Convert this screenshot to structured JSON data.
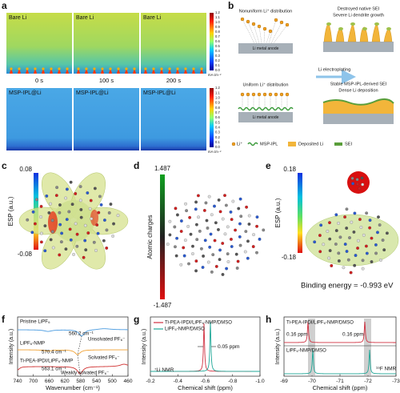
{
  "panel_labels": [
    "a",
    "b",
    "c",
    "d",
    "e",
    "f",
    "g",
    "h"
  ],
  "panel_a": {
    "top_titles": [
      "Bare Li",
      "Bare Li",
      "Bare Li"
    ],
    "times": [
      "0 s",
      "100 s",
      "200 s"
    ],
    "bottom_titles": [
      "MSP-IPL@Li",
      "MSP-IPL@Li",
      "MSP-IPL@Li"
    ],
    "colorbars": [
      {
        "ticks": [
          "1.2",
          "1.1",
          "1.0",
          "0.9",
          "0.8",
          "0.7",
          "0.6",
          "0.5",
          "0.4",
          "0.3",
          "0.2",
          "0.1",
          "0.0"
        ],
        "unit": "mA cm⁻²"
      },
      {
        "ticks": [
          "1.2",
          "1.1",
          "1.0",
          "0.9",
          "0.8",
          "0.7",
          "0.6",
          "0.5",
          "0.4",
          "0.3",
          "0.2",
          "0.1",
          "0.0"
        ],
        "unit": "mA cm⁻²"
      }
    ]
  },
  "panel_b": {
    "nonuniform": "Nonuniform Li⁺ distribution",
    "destroyed": "Destroyed native SEI",
    "dendrite": "Severe Li dendrite growth",
    "anode_top": "Li metal anode",
    "process": "Li electroplating",
    "uniform": "Uniform Li⁺ distribution",
    "stable": "Stable MSP-IPL-derived SEI",
    "dense": "Dense Li deposition",
    "anode_bottom": "Li metal anode",
    "legend": [
      "Li⁺",
      "MSP-IPL",
      "Deposited Li",
      "SEI"
    ]
  },
  "panel_c": {
    "colorbar_max": "0.08",
    "colorbar_min": "-0.08",
    "axis_label": "ESP (a.u.)"
  },
  "panel_d": {
    "colorbar_max": "1.487",
    "colorbar_min": "-1.487",
    "axis_label": "Atomic charges"
  },
  "panel_e": {
    "colorbar_max": "0.18",
    "colorbar_min": "-0.18",
    "axis_label": "ESP (a.u.)",
    "annotation": "Binding energy = -0.993 eV"
  },
  "panel_f": {
    "y_label": "Intensity (a.u.)",
    "x_label": "Wavenumber (cm⁻¹)",
    "x_ticks": [
      "740",
      "700",
      "660",
      "620",
      "580",
      "540",
      "500",
      "460"
    ],
    "traces": [
      {
        "name": "Pristine LiPF₆",
        "peak": "560.2 cm⁻¹",
        "note": "Unsolvated PF₆⁻"
      },
      {
        "name": "LiPF₆-NMP",
        "peak": "570.4 cm⁻¹",
        "note": "Solvated PF₆⁻"
      },
      {
        "name": "Ti-PEA-IPDI/LiPF₆-NMP",
        "peak": "563.1 cm⁻¹",
        "note": "Weakly solvated PF₆⁻"
      }
    ]
  },
  "panel_g": {
    "legend": [
      "Ti-PEA-IPDI/LiPF₆-NMP/DMSO",
      "LiPF₆-NMP/DMSO"
    ],
    "shift": "0.05 ppm",
    "nucleus": "⁷Li NMR",
    "x_ticks": [
      "-0.2",
      "-0.4",
      "-0.6",
      "-0.8",
      "-1.0"
    ],
    "x_label": "Chemical shift (ppm)",
    "y_label": "Intensity (a.u.)"
  },
  "panel_h": {
    "series": [
      "Ti-PEA-IPDI/LiPF₆-NMP/DMSO",
      "LiPF₆-NMP/DMSO"
    ],
    "shifts": [
      "0.16 ppm",
      "0.16 ppm"
    ],
    "nucleus": "¹⁹F NMR",
    "x_ticks": [
      "-69",
      "-70",
      "-71",
      "-72",
      "-73"
    ],
    "x_label": "Chemical shift (ppm)",
    "y_label": "Intensity (a.u.)"
  }
}
